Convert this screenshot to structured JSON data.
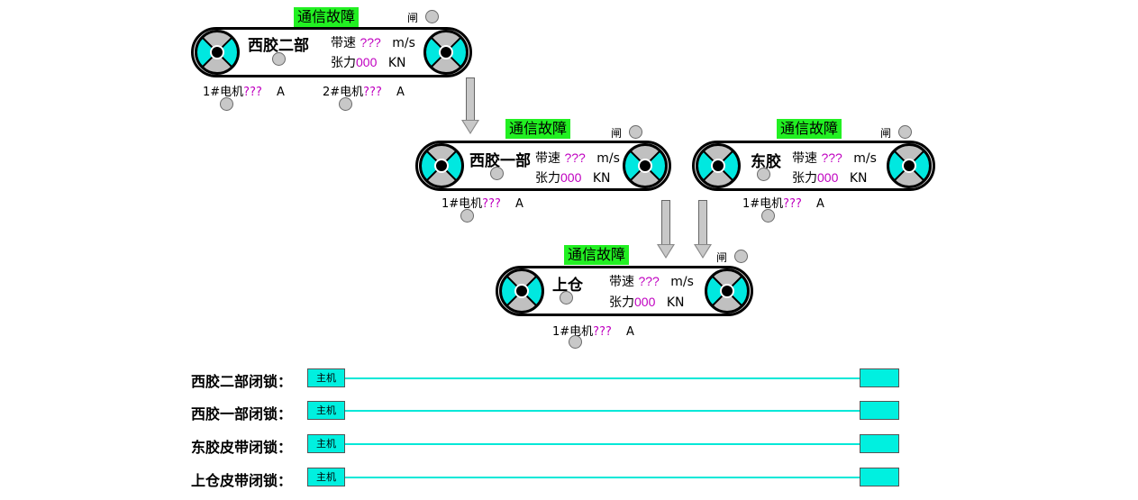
{
  "conveyors": {
    "xijiao2": {
      "name": "西胶二部",
      "status": "通信故障",
      "gate_label": "闸",
      "speed_label": "带速",
      "speed_value": "???",
      "speed_unit": "m/s",
      "tension_label": "张力",
      "tension_value": "000",
      "tension_unit": "KN",
      "motors": [
        {
          "label": "1#电机",
          "value": "???",
          "unit": "A"
        },
        {
          "label": "2#电机",
          "value": "???",
          "unit": "A"
        }
      ]
    },
    "xijiao1": {
      "name": "西胶一部",
      "status": "通信故障",
      "gate_label": "闸",
      "speed_label": "带速",
      "speed_value": "???",
      "speed_unit": "m/s",
      "tension_label": "张力",
      "tension_value": "000",
      "tension_unit": "KN",
      "motors": [
        {
          "label": "1#电机",
          "value": "???",
          "unit": "A"
        }
      ]
    },
    "dongjiao": {
      "name": "东胶",
      "status": "通信故障",
      "gate_label": "闸",
      "speed_label": "带速",
      "speed_value": "???",
      "speed_unit": "m/s",
      "tension_label": "张力",
      "tension_value": "000",
      "tension_unit": "KN",
      "motors": [
        {
          "label": "1#电机",
          "value": "???",
          "unit": "A"
        }
      ]
    },
    "shangcang": {
      "name": "上仓",
      "status": "通信故障",
      "gate_label": "闸",
      "speed_label": "带速",
      "speed_value": "???",
      "speed_unit": "m/s",
      "tension_label": "张力",
      "tension_value": "000",
      "tension_unit": "KN",
      "motors": [
        {
          "label": "1#电机",
          "value": "???",
          "unit": "A"
        }
      ]
    }
  },
  "interlocks": [
    {
      "label": "西胶二部闭锁：",
      "host": "主机"
    },
    {
      "label": "西胶一部闭锁：",
      "host": "主机"
    },
    {
      "label": "东胶皮带闭锁：",
      "host": "主机"
    },
    {
      "label": "上仓皮带闭锁：",
      "host": "主机"
    }
  ],
  "colors": {
    "fault_bg": "#22f022",
    "value_text": "#c000c0",
    "wheel_accent": "#00e8e0",
    "interlock_line": "#00e8d8",
    "lamp_off": "#c8c8c8"
  },
  "icons": {
    "pulley": "pulley-wheel-icon",
    "lamp": "status-lamp-icon",
    "arrow": "flow-arrow-down-icon"
  }
}
